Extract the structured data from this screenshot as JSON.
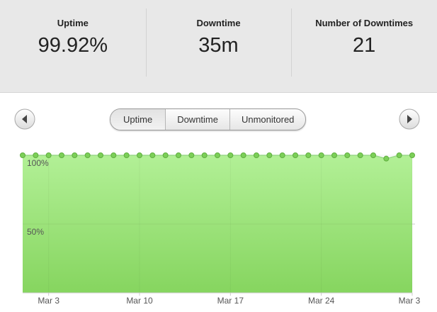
{
  "stats": [
    {
      "label": "Uptime",
      "value": "99.92%"
    },
    {
      "label": "Downtime",
      "value": "35m"
    },
    {
      "label": "Number of Downtimes",
      "value": "21"
    }
  ],
  "tabs": [
    "Uptime",
    "Downtime",
    "Unmonitored"
  ],
  "chart_data": {
    "type": "area",
    "categories": [
      null,
      null,
      "Mar 3",
      null,
      null,
      null,
      null,
      null,
      null,
      "Mar 10",
      null,
      null,
      null,
      null,
      null,
      null,
      "Mar 17",
      null,
      null,
      null,
      null,
      null,
      null,
      "Mar 24",
      null,
      null,
      null,
      null,
      null,
      null,
      "Mar 3"
    ],
    "values": [
      100,
      100,
      100,
      100,
      100,
      100,
      100,
      100,
      100,
      100,
      100,
      100,
      100,
      100,
      100,
      100,
      100,
      100,
      100,
      100,
      100,
      100,
      100,
      100,
      100,
      100,
      100,
      100,
      97.6,
      100,
      100
    ],
    "color": "#7ccf58",
    "ylim": [
      0,
      100
    ],
    "yticks": [
      {
        "value": 50,
        "label": "50%"
      },
      {
        "value": 100,
        "label": "100%"
      }
    ],
    "grid": true
  }
}
